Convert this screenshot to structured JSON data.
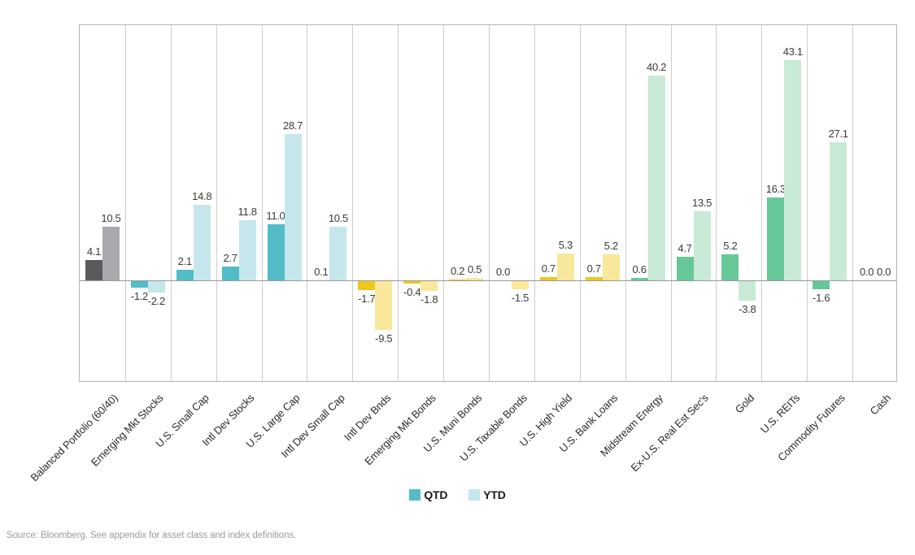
{
  "chart_data": {
    "type": "bar",
    "title": "",
    "categories": [
      "Balanced Portfolio (60/40)",
      "Emerging Mkt Stocks",
      "U.S. Small Cap",
      "Intl Dev Stocks",
      "U.S. Large Cap",
      "Intl Dev Small Cap",
      "Intl Dev Bnds",
      "Emerging Mkt Bonds",
      "U.S. Muni Bonds",
      "U.S. Taxable Bonds",
      "U.S. High Yield",
      "U.S. Bank Loans",
      "Midstream Energy",
      "Ex-U.S. Real Est Sec's",
      "Gold",
      "U.S. REITs",
      "Commodity Futures",
      "Cash"
    ],
    "series": [
      {
        "name": "QTD",
        "values": [
          4.1,
          -1.2,
          2.1,
          2.7,
          11.0,
          0.1,
          -1.7,
          -0.4,
          0.2,
          0.0,
          0.7,
          0.7,
          0.6,
          4.7,
          5.2,
          16.3,
          -1.6,
          0.0
        ]
      },
      {
        "name": "YTD",
        "values": [
          10.5,
          -2.2,
          14.8,
          11.8,
          28.7,
          10.5,
          -9.5,
          -1.8,
          0.5,
          -1.5,
          5.3,
          5.2,
          40.2,
          13.5,
          -3.8,
          43.1,
          27.1,
          0.0
        ]
      }
    ],
    "category_groups": [
      "gray",
      "teal",
      "teal",
      "teal",
      "teal",
      "teal",
      "yellow",
      "yellow",
      "yellow",
      "yellow",
      "yellow",
      "yellow",
      "green",
      "green",
      "green",
      "green",
      "green",
      "green"
    ],
    "group_colors": {
      "gray": {
        "qtd": "#595a5c",
        "ytd": "#a7a9ac"
      },
      "teal": {
        "qtd": "#53bcc7",
        "ytd": "#c5e7ec"
      },
      "yellow": {
        "qtd": "#efc61e",
        "ytd": "#f9e79b"
      },
      "green": {
        "qtd": "#66c897",
        "ytd": "#c8ead6"
      }
    },
    "ylim": [
      -20,
      50
    ],
    "grid": "vertical-category-separators",
    "value_label_decimals": 1,
    "legend": {
      "position": "bottom-center",
      "entries": [
        {
          "label": "QTD",
          "color": "#53bcc7"
        },
        {
          "label": "YTD",
          "color": "#c5e7ec"
        }
      ]
    }
  },
  "footer": {
    "source_text": "Source: Bloomberg. See appendix for asset class and index definitions."
  }
}
